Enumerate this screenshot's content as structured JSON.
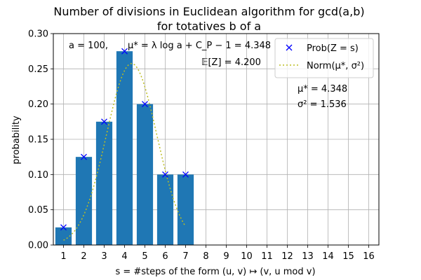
{
  "chart_data": {
    "type": "bar",
    "title_line1": "Number of divisions in Euclidean algorithm for gcd(a,b)",
    "title_line2": "for totatives b of a",
    "xlabel": "s = #steps of the form (u, v) ↦ (v, u mod v)",
    "ylabel": "probability",
    "x_ticks": [
      "1",
      "2",
      "3",
      "4",
      "5",
      "6",
      "7",
      "8",
      "9",
      "10",
      "11",
      "12",
      "13",
      "14",
      "15",
      "16"
    ],
    "y_ticks": [
      "0.00",
      "0.05",
      "0.10",
      "0.15",
      "0.20",
      "0.25",
      "0.30"
    ],
    "xlim": [
      0.5,
      16.5
    ],
    "ylim": [
      0,
      0.3
    ],
    "grid": true,
    "bar_color": "#1f77b4",
    "categories": [
      1,
      2,
      3,
      4,
      5,
      6,
      7
    ],
    "values": [
      0.025,
      0.125,
      0.175,
      0.275,
      0.2,
      0.1,
      0.1
    ],
    "normal_fit": {
      "mu": 4.348,
      "sigma2": 1.536,
      "x_range": [
        1,
        7
      ],
      "color": "#bcbd22"
    },
    "marker_color": "#0000ff",
    "annotations": {
      "a_text": "a =  100,",
      "mu_formula": "μ* = λ log a + C_P − 1 = 4.348",
      "expectation": "𝔼[Z] = 4.200",
      "mu_value": "μ* =  4.348",
      "sigma_value": "σ² =  1.536"
    },
    "legend": {
      "position": "top-right",
      "items": [
        "Prob(Z = s)",
        "Norm(μ*, σ²)"
      ]
    }
  }
}
